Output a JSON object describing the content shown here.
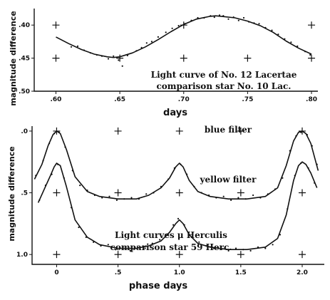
{
  "chart_data": [
    {
      "type": "scatter",
      "xlabel": "days",
      "ylabel": "magnitude difference",
      "xlim": [
        0.583,
        0.805
      ],
      "ylim": [
        0.5,
        0.375
      ],
      "x_ticks": [
        ".60",
        ".65",
        ".70",
        ".75",
        ".80"
      ],
      "y_ticks": [
        ".40",
        ".45",
        ".50"
      ],
      "annotation_lines": [
        "Light curve of No. 12 Lacertae",
        "comparison star No. 10 Lac."
      ],
      "grid_markers": [
        [
          0.6,
          0.4
        ],
        [
          0.6,
          0.45
        ],
        [
          0.65,
          0.45
        ],
        [
          0.7,
          0.4
        ],
        [
          0.7,
          0.45
        ],
        [
          0.75,
          0.45
        ],
        [
          0.8,
          0.4
        ],
        [
          0.8,
          0.45
        ]
      ],
      "series": [
        {
          "kind": "fit",
          "x": [
            0.6,
            0.61,
            0.62,
            0.63,
            0.64,
            0.645,
            0.65,
            0.66,
            0.67,
            0.68,
            0.69,
            0.7,
            0.71,
            0.72,
            0.725,
            0.73,
            0.74,
            0.75,
            0.76,
            0.77,
            0.78,
            0.79,
            0.8
          ],
          "y": [
            0.418,
            0.428,
            0.437,
            0.444,
            0.448,
            0.449,
            0.448,
            0.442,
            0.433,
            0.422,
            0.41,
            0.399,
            0.391,
            0.387,
            0.386,
            0.387,
            0.389,
            0.394,
            0.401,
            0.411,
            0.424,
            0.435,
            0.444
          ]
        },
        {
          "kind": "observations",
          "x": [
            0.612,
            0.617,
            0.622,
            0.627,
            0.632,
            0.636,
            0.641,
            0.645,
            0.649,
            0.652,
            0.656,
            0.663,
            0.667,
            0.671,
            0.675,
            0.68,
            0.686,
            0.691,
            0.696,
            0.701,
            0.706,
            0.711,
            0.716,
            0.721,
            0.724,
            0.728,
            0.731,
            0.735,
            0.739,
            0.743,
            0.747,
            0.751,
            0.755,
            0.759,
            0.764,
            0.769,
            0.774,
            0.779,
            0.784,
            0.789,
            0.795,
            0.799
          ],
          "y": [
            0.433,
            0.432,
            0.438,
            0.442,
            0.445,
            0.447,
            0.451,
            0.447,
            0.453,
            0.462,
            0.446,
            0.439,
            0.434,
            0.427,
            0.425,
            0.418,
            0.411,
            0.405,
            0.401,
            0.398,
            0.393,
            0.389,
            0.389,
            0.386,
            0.388,
            0.385,
            0.386,
            0.391,
            0.388,
            0.393,
            0.389,
            0.395,
            0.397,
            0.398,
            0.404,
            0.408,
            0.414,
            0.421,
            0.426,
            0.432,
            0.44,
            0.445
          ]
        }
      ]
    },
    {
      "type": "scatter",
      "xlabel": "phase days",
      "ylabel": "magnitude difference",
      "xlim": [
        -0.2,
        2.18
      ],
      "ylim": [
        1.08,
        -0.04
      ],
      "x_ticks": [
        "0",
        ".5",
        "1.0",
        "1.5",
        "2.0"
      ],
      "y_ticks": [
        "1.0",
        ".5",
        ".0"
      ],
      "annotation_lines": [
        "blue filter",
        "yellow filter",
        "Light curves μ Herculis",
        "comparison star   59 Herc."
      ],
      "grid_markers": [
        [
          0,
          1.0
        ],
        [
          0.5,
          1.0
        ],
        [
          1.0,
          1.0
        ],
        [
          1.5,
          1.0
        ],
        [
          2.0,
          1.0
        ],
        [
          0,
          0.5
        ],
        [
          0.5,
          0.5
        ],
        [
          1.0,
          0.5
        ],
        [
          1.5,
          0.5
        ],
        [
          2.0,
          0.5
        ],
        [
          0,
          0.0
        ],
        [
          0.5,
          0.0
        ],
        [
          1.0,
          0.0
        ],
        [
          1.5,
          0.0
        ],
        [
          2.0,
          0.0
        ]
      ],
      "series": [
        {
          "name": "blue filter",
          "kind": "fit",
          "x": [
            -0.15,
            -0.1,
            -0.05,
            -0.02,
            0.0,
            0.03,
            0.08,
            0.15,
            0.25,
            0.35,
            0.5,
            0.65,
            0.75,
            0.85,
            0.92,
            0.97,
            1.0,
            1.03,
            1.08,
            1.15,
            1.25,
            1.4,
            1.55,
            1.7,
            1.8,
            1.87,
            1.93,
            1.97,
            2.0,
            2.03,
            2.07,
            2.12
          ],
          "y": [
            0.58,
            0.47,
            0.36,
            0.29,
            0.26,
            0.28,
            0.45,
            0.72,
            0.86,
            0.92,
            0.95,
            0.95,
            0.93,
            0.89,
            0.82,
            0.75,
            0.72,
            0.75,
            0.84,
            0.91,
            0.94,
            0.96,
            0.96,
            0.94,
            0.87,
            0.68,
            0.4,
            0.28,
            0.25,
            0.27,
            0.34,
            0.46
          ]
        },
        {
          "name": "yellow filter",
          "kind": "fit",
          "x": [
            -0.18,
            -0.12,
            -0.07,
            -0.03,
            0.0,
            0.03,
            0.08,
            0.15,
            0.25,
            0.35,
            0.5,
            0.65,
            0.75,
            0.85,
            0.92,
            0.97,
            1.0,
            1.03,
            1.08,
            1.15,
            1.25,
            1.4,
            1.55,
            1.7,
            1.8,
            1.87,
            1.93,
            1.97,
            2.0,
            2.03,
            2.07,
            2.13
          ],
          "y": [
            0.39,
            0.27,
            0.12,
            0.03,
            0.0,
            0.02,
            0.15,
            0.37,
            0.49,
            0.53,
            0.55,
            0.55,
            0.52,
            0.46,
            0.38,
            0.29,
            0.26,
            0.29,
            0.4,
            0.49,
            0.53,
            0.55,
            0.55,
            0.53,
            0.46,
            0.28,
            0.08,
            0.01,
            0.0,
            0.02,
            0.1,
            0.32
          ]
        },
        {
          "name": "blue filter",
          "kind": "observations",
          "x": [
            -0.14,
            -0.09,
            -0.04,
            0.01,
            0.06,
            0.12,
            0.18,
            0.24,
            0.3,
            0.36,
            0.42,
            0.48,
            0.54,
            0.6,
            0.66,
            0.72,
            0.78,
            0.84,
            0.9,
            0.95,
            0.99,
            1.04,
            1.1,
            1.16,
            1.22,
            1.28,
            1.34,
            1.4,
            1.46,
            1.52,
            1.58,
            1.64,
            1.7,
            1.76,
            1.82,
            1.88,
            1.94,
            1.99,
            2.05,
            2.1
          ],
          "y": [
            0.56,
            0.44,
            0.35,
            0.27,
            0.38,
            0.62,
            0.78,
            0.86,
            0.9,
            0.93,
            0.92,
            0.96,
            0.94,
            0.97,
            0.94,
            0.95,
            0.91,
            0.88,
            0.84,
            0.76,
            0.71,
            0.76,
            0.86,
            0.9,
            0.93,
            0.95,
            0.94,
            0.97,
            0.95,
            0.96,
            0.97,
            0.94,
            0.95,
            0.92,
            0.84,
            0.63,
            0.36,
            0.26,
            0.3,
            0.42
          ]
        },
        {
          "name": "yellow filter",
          "kind": "observations",
          "x": [
            -0.17,
            -0.11,
            -0.06,
            -0.02,
            0.02,
            0.07,
            0.13,
            0.19,
            0.25,
            0.31,
            0.37,
            0.43,
            0.49,
            0.55,
            0.61,
            0.67,
            0.73,
            0.79,
            0.85,
            0.91,
            0.96,
            1.01,
            1.06,
            1.12,
            1.18,
            1.24,
            1.3,
            1.36,
            1.42,
            1.48,
            1.54,
            1.6,
            1.66,
            1.72,
            1.78,
            1.84,
            1.9,
            1.95,
            1.99,
            2.04,
            2.08,
            2.12
          ],
          "y": [
            0.36,
            0.24,
            0.1,
            0.02,
            0.01,
            0.13,
            0.32,
            0.44,
            0.48,
            0.52,
            0.54,
            0.53,
            0.56,
            0.55,
            0.54,
            0.55,
            0.51,
            0.5,
            0.45,
            0.39,
            0.3,
            0.27,
            0.35,
            0.45,
            0.5,
            0.52,
            0.54,
            0.53,
            0.56,
            0.54,
            0.55,
            0.52,
            0.54,
            0.51,
            0.47,
            0.38,
            0.16,
            0.04,
            0.01,
            0.03,
            0.12,
            0.27
          ]
        }
      ]
    }
  ]
}
